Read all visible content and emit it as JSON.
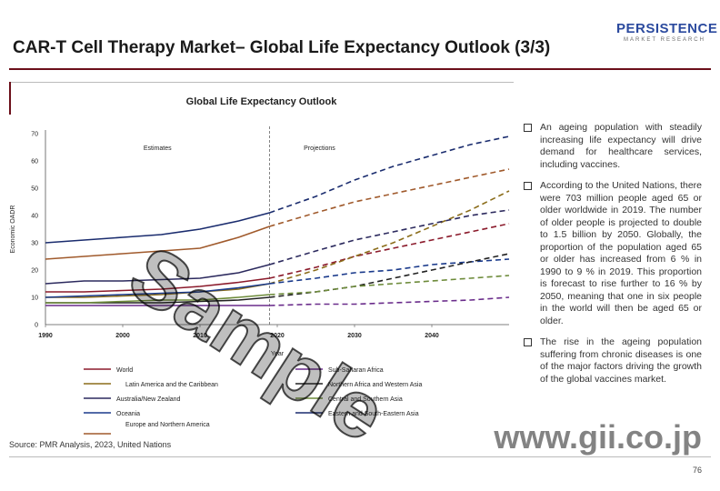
{
  "header": {
    "title": "CAR-T Cell Therapy Market– Global Life Expectancy Outlook (3/3)",
    "logo_main": "PERSISTENCE",
    "logo_sub": "MARKET RESEARCH"
  },
  "chart_data": {
    "type": "line",
    "title": "Global Life Expectancy Outlook",
    "xlabel": "Year",
    "ylabel": "Economic OADR",
    "xlim": [
      1990,
      2050
    ],
    "ylim": [
      0,
      70
    ],
    "xticks": [
      1990,
      2000,
      2010,
      2020,
      2030,
      2040
    ],
    "yticks": [
      0,
      10,
      20,
      30,
      40,
      50,
      60,
      70
    ],
    "projection_start": 2019,
    "region_labels": [
      "Estimates",
      "Projections"
    ],
    "series": [
      {
        "name": "World",
        "color": "#8b1a2b",
        "x": [
          1990,
          1995,
          2000,
          2005,
          2010,
          2015,
          2019,
          2025,
          2030,
          2035,
          2040,
          2045,
          2050
        ],
        "y": [
          12,
          12,
          12.5,
          13,
          14,
          15.5,
          17,
          21,
          25,
          28,
          31,
          34,
          37
        ]
      },
      {
        "name": "Latin America and the Caribbean",
        "color": "#8b6d1a",
        "x": [
          1990,
          1995,
          2000,
          2005,
          2010,
          2015,
          2019,
          2025,
          2030,
          2035,
          2040,
          2045,
          2050
        ],
        "y": [
          10,
          10,
          10.5,
          11,
          12,
          13,
          15,
          20,
          25,
          30,
          36,
          42,
          49
        ]
      },
      {
        "name": "Australia/New Zealand",
        "color": "#2c2a5e",
        "x": [
          1990,
          1995,
          2000,
          2005,
          2010,
          2015,
          2019,
          2025,
          2030,
          2035,
          2040,
          2045,
          2050
        ],
        "y": [
          15,
          16,
          16,
          16.5,
          17,
          19,
          22,
          27,
          31,
          34,
          37,
          40,
          42
        ]
      },
      {
        "name": "Oceania",
        "color": "#1a3a8b",
        "x": [
          1990,
          1995,
          2000,
          2005,
          2010,
          2015,
          2019,
          2025,
          2030,
          2035,
          2040,
          2045,
          2050
        ],
        "y": [
          10,
          10.5,
          11,
          11.5,
          12,
          13.5,
          15,
          17,
          19,
          20,
          22,
          23,
          24
        ]
      },
      {
        "name": "Europe and Northern America",
        "color": "#a05a2c",
        "x": [
          1990,
          1995,
          2000,
          2005,
          2010,
          2015,
          2019,
          2025,
          2030,
          2035,
          2040,
          2045,
          2050
        ],
        "y": [
          24,
          25,
          26,
          27,
          28,
          32,
          36,
          41,
          45,
          48,
          51,
          54,
          57
        ]
      },
      {
        "name": "Sub-Saharan Africa",
        "color": "#6a2c8b",
        "x": [
          1990,
          1995,
          2000,
          2005,
          2010,
          2015,
          2019,
          2025,
          2030,
          2035,
          2040,
          2045,
          2050
        ],
        "y": [
          7,
          7,
          7,
          7,
          7,
          7,
          7,
          7.5,
          7.5,
          8,
          8.5,
          9,
          10
        ]
      },
      {
        "name": "Northern Africa and Western Asia",
        "color": "#222222",
        "x": [
          1990,
          1995,
          2000,
          2005,
          2010,
          2015,
          2019,
          2025,
          2030,
          2035,
          2040,
          2045,
          2050
        ],
        "y": [
          8,
          8,
          8,
          8,
          8.5,
          9,
          10,
          12,
          14,
          17,
          20,
          23,
          26
        ]
      },
      {
        "name": "Central and Southern Asia",
        "color": "#6d8b3a",
        "x": [
          1990,
          1995,
          2000,
          2005,
          2010,
          2015,
          2019,
          2025,
          2030,
          2035,
          2040,
          2045,
          2050
        ],
        "y": [
          8,
          8,
          8.5,
          9,
          9,
          10,
          11,
          12,
          14,
          15,
          16,
          17,
          18
        ]
      },
      {
        "name": "Eastern and South-Eastern Asia",
        "color": "#1a2c6e",
        "x": [
          1990,
          1995,
          2000,
          2005,
          2010,
          2015,
          2019,
          2025,
          2030,
          2035,
          2040,
          2045,
          2050
        ],
        "y": [
          30,
          31,
          32,
          33,
          35,
          38,
          41,
          47,
          53,
          58,
          62,
          66,
          69
        ]
      }
    ]
  },
  "bullets": [
    "An ageing population with steadily increasing life expectancy will drive demand for healthcare services, including vaccines.",
    "According to the United Nations, there were 703 million people aged 65 or older worldwide in 2019. The number of older people is projected to double to 1.5 billion by 2050. Globally, the proportion of the population aged 65 or older has increased from 6 % in 1990 to 9 % in 2019. This proportion is forecast to rise further to 16 % by 2050, meaning that one in six people in the world will then be aged 65 or older.",
    "The rise in the ageing population suffering from chronic diseases is one of the major factors driving the growth of the global vaccines market."
  ],
  "footer": {
    "source": "Source: PMR Analysis, 2023, United Nations",
    "page": "76"
  },
  "watermark": {
    "text": "Sample",
    "url": "www.gii.co.jp"
  }
}
